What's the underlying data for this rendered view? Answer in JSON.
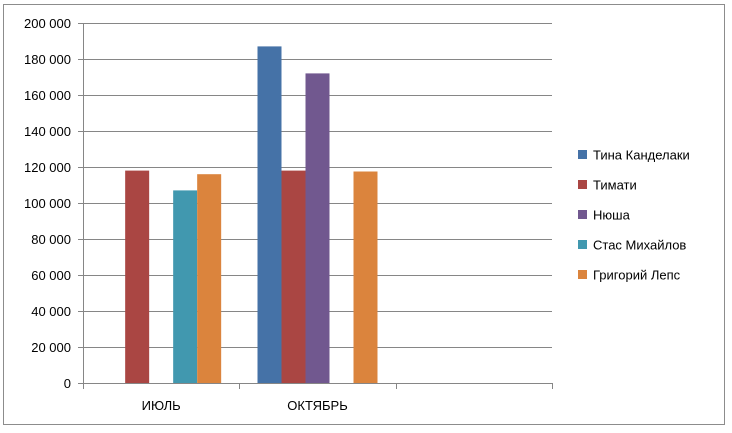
{
  "chart_data": {
    "type": "bar",
    "title": "",
    "xlabel": "",
    "ylabel": "",
    "categories": [
      "ИЮЛЬ",
      "ОКТЯБРЬ",
      ""
    ],
    "ylim": [
      0,
      200000
    ],
    "yticks": [
      0,
      20000,
      40000,
      60000,
      80000,
      100000,
      120000,
      140000,
      160000,
      180000,
      200000
    ],
    "ytick_labels": [
      "0",
      "20 000",
      "40 000",
      "60 000",
      "80 000",
      "100 000",
      "120 000",
      "140 000",
      "160 000",
      "180 000",
      "200 000"
    ],
    "grid": "horizontal",
    "legend_position": "right",
    "series": [
      {
        "name": "Тина Канделаки",
        "color": "#4572A7",
        "values": [
          null,
          187000,
          null
        ]
      },
      {
        "name": "Тимати",
        "color": "#AA4643",
        "values": [
          118000,
          118000,
          null
        ]
      },
      {
        "name": "Нюша",
        "color": "#71588F",
        "values": [
          null,
          172000,
          null
        ]
      },
      {
        "name": "Стас Михайлов",
        "color": "#4198AF",
        "values": [
          107000,
          null,
          null
        ]
      },
      {
        "name": "Григорий Лепс",
        "color": "#DB843D",
        "values": [
          116000,
          117500,
          null
        ]
      }
    ]
  }
}
